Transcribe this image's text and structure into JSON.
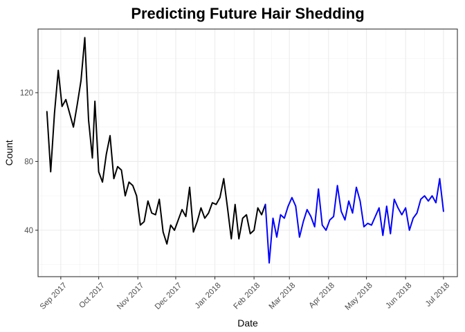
{
  "chart_data": {
    "type": "line",
    "title": "Predicting Future Hair Shedding",
    "xlabel": "Date",
    "ylabel": "Count",
    "x_axis_type": "date",
    "xlim": [
      "2017-08-14",
      "2018-07-12"
    ],
    "ylim": [
      13,
      157
    ],
    "y_ticks": [
      40,
      80,
      120
    ],
    "x_ticks": [
      {
        "date": "2017-09-01",
        "label": "Sep 2017"
      },
      {
        "date": "2017-10-01",
        "label": "Oct 2017"
      },
      {
        "date": "2017-11-01",
        "label": "Nov 2017"
      },
      {
        "date": "2017-12-01",
        "label": "Dec 2017"
      },
      {
        "date": "2018-01-01",
        "label": "Jan 2018"
      },
      {
        "date": "2018-02-01",
        "label": "Feb 2018"
      },
      {
        "date": "2018-03-01",
        "label": "Mar 2018"
      },
      {
        "date": "2018-04-01",
        "label": "Apr 2018"
      },
      {
        "date": "2018-05-01",
        "label": "May 2018"
      },
      {
        "date": "2018-06-01",
        "label": "Jun 2018"
      },
      {
        "date": "2018-07-01",
        "label": "Jul 2018"
      }
    ],
    "grid": true,
    "legend": "none",
    "series": [
      {
        "color": "#000000",
        "points": [
          [
            "2017-08-21",
            109
          ],
          [
            "2017-08-24",
            74
          ],
          [
            "2017-08-27",
            108
          ],
          [
            "2017-08-30",
            133
          ],
          [
            "2017-09-02",
            112
          ],
          [
            "2017-09-05",
            116
          ],
          [
            "2017-09-08",
            108
          ],
          [
            "2017-09-11",
            100
          ],
          [
            "2017-09-14",
            113
          ],
          [
            "2017-09-17",
            127
          ],
          [
            "2017-09-20",
            152
          ],
          [
            "2017-09-23",
            104
          ],
          [
            "2017-09-26",
            82
          ],
          [
            "2017-09-28",
            115
          ],
          [
            "2017-10-01",
            74
          ],
          [
            "2017-10-04",
            68
          ],
          [
            "2017-10-07",
            84
          ],
          [
            "2017-10-10",
            95
          ],
          [
            "2017-10-13",
            70
          ],
          [
            "2017-10-16",
            77
          ],
          [
            "2017-10-19",
            75
          ],
          [
            "2017-10-22",
            60
          ],
          [
            "2017-10-25",
            68
          ],
          [
            "2017-10-28",
            66
          ],
          [
            "2017-10-31",
            60
          ],
          [
            "2017-11-03",
            43
          ],
          [
            "2017-11-06",
            45
          ],
          [
            "2017-11-09",
            57
          ],
          [
            "2017-11-12",
            50
          ],
          [
            "2017-11-15",
            49
          ],
          [
            "2017-11-18",
            58
          ],
          [
            "2017-11-21",
            39
          ],
          [
            "2017-11-24",
            32
          ],
          [
            "2017-11-27",
            43
          ],
          [
            "2017-11-30",
            40
          ],
          [
            "2017-12-03",
            46
          ],
          [
            "2017-12-06",
            52
          ],
          [
            "2017-12-09",
            48
          ],
          [
            "2017-12-12",
            65
          ],
          [
            "2017-12-15",
            39
          ],
          [
            "2017-12-18",
            45
          ],
          [
            "2017-12-21",
            53
          ],
          [
            "2017-12-24",
            47
          ],
          [
            "2017-12-27",
            50
          ],
          [
            "2017-12-30",
            56
          ],
          [
            "2018-01-02",
            55
          ],
          [
            "2018-01-05",
            59
          ],
          [
            "2018-01-08",
            70
          ],
          [
            "2018-01-11",
            53
          ],
          [
            "2018-01-14",
            35
          ],
          [
            "2018-01-17",
            55
          ],
          [
            "2018-01-20",
            35
          ],
          [
            "2018-01-23",
            47
          ],
          [
            "2018-01-26",
            49
          ],
          [
            "2018-01-29",
            38
          ],
          [
            "2018-02-01",
            40
          ],
          [
            "2018-02-04",
            53
          ],
          [
            "2018-02-07",
            49
          ],
          [
            "2018-02-10",
            55
          ]
        ]
      },
      {
        "color": "#0000ff",
        "points": [
          [
            "2018-02-10",
            55
          ],
          [
            "2018-02-13",
            21
          ],
          [
            "2018-02-16",
            47
          ],
          [
            "2018-02-19",
            36
          ],
          [
            "2018-02-22",
            49
          ],
          [
            "2018-02-25",
            47
          ],
          [
            "2018-02-28",
            54
          ],
          [
            "2018-03-03",
            59
          ],
          [
            "2018-03-06",
            54
          ],
          [
            "2018-03-09",
            36
          ],
          [
            "2018-03-12",
            45
          ],
          [
            "2018-03-15",
            52
          ],
          [
            "2018-03-18",
            48
          ],
          [
            "2018-03-21",
            42
          ],
          [
            "2018-03-24",
            64
          ],
          [
            "2018-03-27",
            43
          ],
          [
            "2018-03-30",
            40
          ],
          [
            "2018-04-02",
            46
          ],
          [
            "2018-04-05",
            48
          ],
          [
            "2018-04-08",
            66
          ],
          [
            "2018-04-11",
            51
          ],
          [
            "2018-04-14",
            46
          ],
          [
            "2018-04-17",
            57
          ],
          [
            "2018-04-20",
            50
          ],
          [
            "2018-04-23",
            65
          ],
          [
            "2018-04-26",
            57
          ],
          [
            "2018-04-29",
            42
          ],
          [
            "2018-05-02",
            44
          ],
          [
            "2018-05-05",
            43
          ],
          [
            "2018-05-08",
            48
          ],
          [
            "2018-05-11",
            53
          ],
          [
            "2018-05-14",
            37
          ],
          [
            "2018-05-17",
            54
          ],
          [
            "2018-05-20",
            38
          ],
          [
            "2018-05-23",
            58
          ],
          [
            "2018-05-26",
            53
          ],
          [
            "2018-05-29",
            49
          ],
          [
            "2018-06-01",
            53
          ],
          [
            "2018-06-04",
            40
          ],
          [
            "2018-06-07",
            47
          ],
          [
            "2018-06-10",
            50
          ],
          [
            "2018-06-13",
            58
          ],
          [
            "2018-06-16",
            60
          ],
          [
            "2018-06-19",
            57
          ],
          [
            "2018-06-22",
            60
          ],
          [
            "2018-06-25",
            56
          ],
          [
            "2018-06-28",
            70
          ],
          [
            "2018-07-01",
            51
          ]
        ]
      }
    ]
  }
}
